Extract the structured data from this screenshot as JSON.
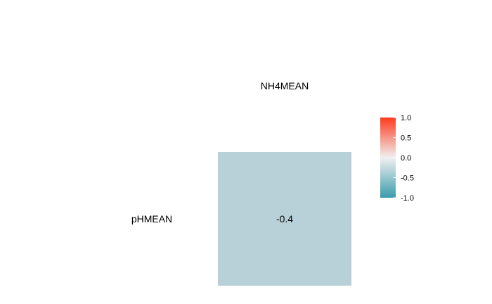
{
  "chart_data": {
    "type": "heatmap",
    "title": "",
    "columns": [
      "NH4MEAN"
    ],
    "rows": [
      "pHMEAN"
    ],
    "values": [
      [
        -0.4
      ]
    ],
    "cell_labels": [
      [
        "-0.4"
      ]
    ],
    "color_scale": {
      "min": -1.0,
      "max": 1.0,
      "low_color": "#3a9cad",
      "mid_color": "#f0f0f0",
      "high_color": "#ff3a1e",
      "cell_color": "#b8d1d8",
      "ticks": [
        1.0,
        0.5,
        0.0,
        -0.5,
        -1.0
      ],
      "tick_labels": [
        "1.0",
        "0.5",
        "0.0",
        "-0.5",
        "-1.0"
      ]
    },
    "legend_position": "right",
    "grid": false
  }
}
